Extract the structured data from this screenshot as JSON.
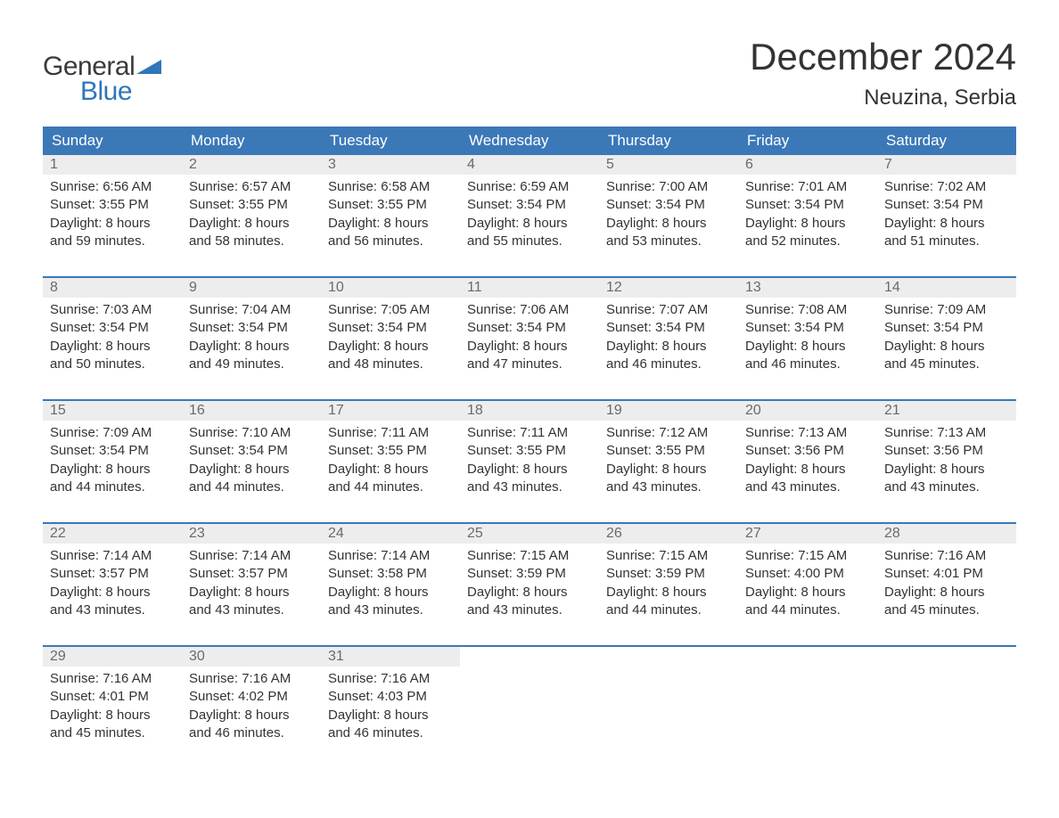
{
  "brand": {
    "general": "General",
    "blue": "Blue"
  },
  "title": {
    "month": "December 2024",
    "location": "Neuzina, Serbia"
  },
  "colors": {
    "header_bg": "#3b78b8",
    "header_text": "#ffffff",
    "day_num_bg": "#ededed",
    "day_num_text": "#6a6a6a",
    "body_text": "#333333",
    "week_divider": "#3b78b8",
    "logo_blue": "#2f76bb",
    "logo_gray": "#3a3a3a",
    "page_bg": "#ffffff"
  },
  "typography": {
    "month_title_size_pt": 32,
    "location_size_pt": 18,
    "weekday_size_pt": 13,
    "body_size_pt": 11
  },
  "weekdays": [
    "Sunday",
    "Monday",
    "Tuesday",
    "Wednesday",
    "Thursday",
    "Friday",
    "Saturday"
  ],
  "weeks": [
    [
      {
        "n": "1",
        "sunrise": "Sunrise: 6:56 AM",
        "sunset": "Sunset: 3:55 PM",
        "d1": "Daylight: 8 hours",
        "d2": "and 59 minutes."
      },
      {
        "n": "2",
        "sunrise": "Sunrise: 6:57 AM",
        "sunset": "Sunset: 3:55 PM",
        "d1": "Daylight: 8 hours",
        "d2": "and 58 minutes."
      },
      {
        "n": "3",
        "sunrise": "Sunrise: 6:58 AM",
        "sunset": "Sunset: 3:55 PM",
        "d1": "Daylight: 8 hours",
        "d2": "and 56 minutes."
      },
      {
        "n": "4",
        "sunrise": "Sunrise: 6:59 AM",
        "sunset": "Sunset: 3:54 PM",
        "d1": "Daylight: 8 hours",
        "d2": "and 55 minutes."
      },
      {
        "n": "5",
        "sunrise": "Sunrise: 7:00 AM",
        "sunset": "Sunset: 3:54 PM",
        "d1": "Daylight: 8 hours",
        "d2": "and 53 minutes."
      },
      {
        "n": "6",
        "sunrise": "Sunrise: 7:01 AM",
        "sunset": "Sunset: 3:54 PM",
        "d1": "Daylight: 8 hours",
        "d2": "and 52 minutes."
      },
      {
        "n": "7",
        "sunrise": "Sunrise: 7:02 AM",
        "sunset": "Sunset: 3:54 PM",
        "d1": "Daylight: 8 hours",
        "d2": "and 51 minutes."
      }
    ],
    [
      {
        "n": "8",
        "sunrise": "Sunrise: 7:03 AM",
        "sunset": "Sunset: 3:54 PM",
        "d1": "Daylight: 8 hours",
        "d2": "and 50 minutes."
      },
      {
        "n": "9",
        "sunrise": "Sunrise: 7:04 AM",
        "sunset": "Sunset: 3:54 PM",
        "d1": "Daylight: 8 hours",
        "d2": "and 49 minutes."
      },
      {
        "n": "10",
        "sunrise": "Sunrise: 7:05 AM",
        "sunset": "Sunset: 3:54 PM",
        "d1": "Daylight: 8 hours",
        "d2": "and 48 minutes."
      },
      {
        "n": "11",
        "sunrise": "Sunrise: 7:06 AM",
        "sunset": "Sunset: 3:54 PM",
        "d1": "Daylight: 8 hours",
        "d2": "and 47 minutes."
      },
      {
        "n": "12",
        "sunrise": "Sunrise: 7:07 AM",
        "sunset": "Sunset: 3:54 PM",
        "d1": "Daylight: 8 hours",
        "d2": "and 46 minutes."
      },
      {
        "n": "13",
        "sunrise": "Sunrise: 7:08 AM",
        "sunset": "Sunset: 3:54 PM",
        "d1": "Daylight: 8 hours",
        "d2": "and 46 minutes."
      },
      {
        "n": "14",
        "sunrise": "Sunrise: 7:09 AM",
        "sunset": "Sunset: 3:54 PM",
        "d1": "Daylight: 8 hours",
        "d2": "and 45 minutes."
      }
    ],
    [
      {
        "n": "15",
        "sunrise": "Sunrise: 7:09 AM",
        "sunset": "Sunset: 3:54 PM",
        "d1": "Daylight: 8 hours",
        "d2": "and 44 minutes."
      },
      {
        "n": "16",
        "sunrise": "Sunrise: 7:10 AM",
        "sunset": "Sunset: 3:54 PM",
        "d1": "Daylight: 8 hours",
        "d2": "and 44 minutes."
      },
      {
        "n": "17",
        "sunrise": "Sunrise: 7:11 AM",
        "sunset": "Sunset: 3:55 PM",
        "d1": "Daylight: 8 hours",
        "d2": "and 44 minutes."
      },
      {
        "n": "18",
        "sunrise": "Sunrise: 7:11 AM",
        "sunset": "Sunset: 3:55 PM",
        "d1": "Daylight: 8 hours",
        "d2": "and 43 minutes."
      },
      {
        "n": "19",
        "sunrise": "Sunrise: 7:12 AM",
        "sunset": "Sunset: 3:55 PM",
        "d1": "Daylight: 8 hours",
        "d2": "and 43 minutes."
      },
      {
        "n": "20",
        "sunrise": "Sunrise: 7:13 AM",
        "sunset": "Sunset: 3:56 PM",
        "d1": "Daylight: 8 hours",
        "d2": "and 43 minutes."
      },
      {
        "n": "21",
        "sunrise": "Sunrise: 7:13 AM",
        "sunset": "Sunset: 3:56 PM",
        "d1": "Daylight: 8 hours",
        "d2": "and 43 minutes."
      }
    ],
    [
      {
        "n": "22",
        "sunrise": "Sunrise: 7:14 AM",
        "sunset": "Sunset: 3:57 PM",
        "d1": "Daylight: 8 hours",
        "d2": "and 43 minutes."
      },
      {
        "n": "23",
        "sunrise": "Sunrise: 7:14 AM",
        "sunset": "Sunset: 3:57 PM",
        "d1": "Daylight: 8 hours",
        "d2": "and 43 minutes."
      },
      {
        "n": "24",
        "sunrise": "Sunrise: 7:14 AM",
        "sunset": "Sunset: 3:58 PM",
        "d1": "Daylight: 8 hours",
        "d2": "and 43 minutes."
      },
      {
        "n": "25",
        "sunrise": "Sunrise: 7:15 AM",
        "sunset": "Sunset: 3:59 PM",
        "d1": "Daylight: 8 hours",
        "d2": "and 43 minutes."
      },
      {
        "n": "26",
        "sunrise": "Sunrise: 7:15 AM",
        "sunset": "Sunset: 3:59 PM",
        "d1": "Daylight: 8 hours",
        "d2": "and 44 minutes."
      },
      {
        "n": "27",
        "sunrise": "Sunrise: 7:15 AM",
        "sunset": "Sunset: 4:00 PM",
        "d1": "Daylight: 8 hours",
        "d2": "and 44 minutes."
      },
      {
        "n": "28",
        "sunrise": "Sunrise: 7:16 AM",
        "sunset": "Sunset: 4:01 PM",
        "d1": "Daylight: 8 hours",
        "d2": "and 45 minutes."
      }
    ],
    [
      {
        "n": "29",
        "sunrise": "Sunrise: 7:16 AM",
        "sunset": "Sunset: 4:01 PM",
        "d1": "Daylight: 8 hours",
        "d2": "and 45 minutes."
      },
      {
        "n": "30",
        "sunrise": "Sunrise: 7:16 AM",
        "sunset": "Sunset: 4:02 PM",
        "d1": "Daylight: 8 hours",
        "d2": "and 46 minutes."
      },
      {
        "n": "31",
        "sunrise": "Sunrise: 7:16 AM",
        "sunset": "Sunset: 4:03 PM",
        "d1": "Daylight: 8 hours",
        "d2": "and 46 minutes."
      },
      null,
      null,
      null,
      null
    ]
  ]
}
